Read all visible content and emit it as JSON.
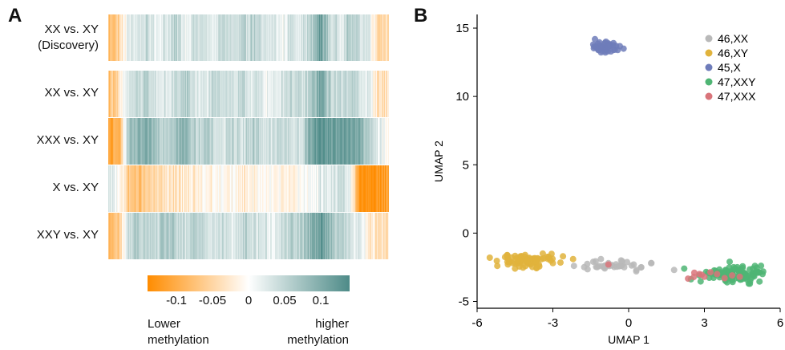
{
  "panels": {
    "a_label": "A",
    "b_label": "B"
  },
  "heatmap": {
    "rows": [
      {
        "label_line1": "XX vs. XY",
        "label_line2": "(Discovery)"
      },
      {
        "label_line1": "XX vs. XY",
        "label_line2": ""
      },
      {
        "label_line1": "XXX vs. XY",
        "label_line2": ""
      },
      {
        "label_line1": "X vs. XY",
        "label_line2": ""
      },
      {
        "label_line1": "XXY vs. XY",
        "label_line2": ""
      }
    ],
    "colorbar": {
      "ticks": [
        "-0.1",
        "-0.05",
        "0",
        "0.05",
        "0.1"
      ],
      "tick_values": [
        -0.1,
        -0.05,
        0,
        0.05,
        0.1
      ],
      "range": [
        -0.14,
        0.14
      ],
      "low_color": "#ff8c00",
      "mid_color": "#ffffff",
      "high_color": "#4e8b88",
      "low_note_line1": "Lower",
      "low_note_line2": "methylation",
      "high_note_line1": "higher",
      "high_note_line2": "methylation"
    }
  },
  "chart_data": [
    {
      "type": "heatmap",
      "rows": [
        "XX vs. XY (Discovery)",
        "XX vs. XY",
        "XXX vs. XY",
        "X vs. XY",
        "XXY vs. XY"
      ],
      "n_columns": 346,
      "values_sampled": [
        [
          -0.08,
          -0.06,
          0.02,
          0.03,
          0.04,
          0.02,
          0.03,
          0.05,
          0.02,
          0.04,
          0.03,
          0.02,
          0.05,
          0.03,
          0.04,
          0.06,
          0.02,
          0.03,
          0.01,
          0.04,
          0.03,
          0.05,
          0.12,
          0.04,
          0.03,
          0.06,
          0.04,
          0.03,
          -0.05,
          -0.03
        ],
        [
          -0.07,
          -0.05,
          0.03,
          0.04,
          0.05,
          0.03,
          0.02,
          0.04,
          0.06,
          0.03,
          0.02,
          0.04,
          0.05,
          0.03,
          0.04,
          0.03,
          0.02,
          0.01,
          0.04,
          0.05,
          0.03,
          0.06,
          0.11,
          0.05,
          0.04,
          0.06,
          0.03,
          0.02,
          -0.04,
          -0.03
        ],
        [
          -0.12,
          -0.1,
          0.06,
          0.08,
          0.09,
          0.07,
          0.06,
          0.08,
          0.09,
          0.05,
          0.06,
          0.04,
          0.03,
          0.05,
          0.04,
          0.06,
          0.04,
          0.03,
          0.05,
          0.04,
          0.03,
          0.11,
          0.13,
          0.12,
          0.11,
          0.12,
          0.1,
          0.05,
          0.02,
          -0.01
        ],
        [
          0.02,
          0.01,
          -0.06,
          -0.08,
          -0.06,
          -0.05,
          -0.03,
          -0.04,
          -0.02,
          -0.03,
          -0.01,
          -0.02,
          0.0,
          -0.01,
          -0.02,
          -0.01,
          -0.02,
          0.0,
          -0.01,
          -0.02,
          0.01,
          -0.01,
          0.03,
          0.02,
          0.04,
          0.02,
          -0.13,
          -0.14,
          -0.13,
          -0.1
        ],
        [
          -0.09,
          -0.07,
          0.04,
          0.06,
          0.05,
          0.04,
          0.07,
          0.05,
          0.03,
          0.06,
          0.05,
          0.03,
          0.04,
          0.02,
          0.05,
          0.04,
          0.03,
          0.02,
          0.04,
          0.06,
          0.05,
          0.1,
          0.12,
          0.08,
          0.06,
          0.03,
          0.02,
          -0.02,
          -0.04,
          -0.03
        ]
      ]
    },
    {
      "type": "scatter",
      "xlabel": "UMAP 1",
      "ylabel": "UMAP 2",
      "xlim": [
        -6,
        6
      ],
      "ylim": [
        -5.5,
        16
      ],
      "xticks": [
        -6,
        -3,
        0,
        3,
        6
      ],
      "xtick_labels": [
        "-6",
        "-3",
        "0",
        "3",
        "6"
      ],
      "yticks": [
        -5,
        0,
        5,
        10,
        15
      ],
      "ytick_labels": [
        "-5",
        "0",
        "5",
        "10",
        "15"
      ],
      "legend_position": "top-right",
      "series": [
        {
          "name": "46,XX",
          "color": "#b9b9b9",
          "center": [
            -0.6,
            -2.4
          ],
          "spread": [
            1.3,
            0.25
          ],
          "n": 40,
          "points": [
            [
              -1.4,
              -2.1
            ],
            [
              -1.2,
              -2.4
            ],
            [
              -0.8,
              -2.2
            ],
            [
              -0.3,
              -2.0
            ],
            [
              0.2,
              -2.3
            ],
            [
              0.5,
              -2.5
            ],
            [
              0.9,
              -2.2
            ],
            [
              -1.1,
              -1.9
            ],
            [
              0.3,
              -2.8
            ],
            [
              1.8,
              -2.7
            ]
          ]
        },
        {
          "name": "46,XY",
          "color": "#e1b33c",
          "center": [
            -4.0,
            -2.0
          ],
          "spread": [
            1.0,
            0.4
          ],
          "n": 85,
          "points": [
            [
              -5.5,
              -1.8
            ],
            [
              -5.2,
              -2.4
            ],
            [
              -4.8,
              -2.1
            ],
            [
              -4.5,
              -2.6
            ],
            [
              -4.1,
              -1.6
            ],
            [
              -3.8,
              -2.0
            ],
            [
              -3.4,
              -1.5
            ],
            [
              -3.0,
              -2.2
            ],
            [
              -2.6,
              -1.7
            ],
            [
              -2.2,
              -1.9
            ]
          ]
        },
        {
          "name": "45,X",
          "color": "#6e7cba",
          "center": [
            -0.9,
            13.6
          ],
          "spread": [
            0.6,
            0.35
          ],
          "n": 45,
          "points": [
            [
              -1.4,
              13.8
            ],
            [
              -1.2,
              13.4
            ],
            [
              -0.9,
              14.0
            ],
            [
              -0.7,
              13.3
            ],
            [
              -0.5,
              13.7
            ],
            [
              -0.2,
              13.5
            ],
            [
              -1.0,
              13.6
            ],
            [
              -0.6,
              13.9
            ]
          ]
        },
        {
          "name": "47,XXY",
          "color": "#4fb574",
          "center": [
            4.2,
            -3.0
          ],
          "spread": [
            1.0,
            0.5
          ],
          "n": 110,
          "points": [
            [
              2.2,
              -2.6
            ],
            [
              2.8,
              -3.1
            ],
            [
              3.4,
              -3.0
            ],
            [
              3.9,
              -3.6
            ],
            [
              4.3,
              -2.5
            ],
            [
              4.6,
              -3.2
            ],
            [
              5.0,
              -2.4
            ],
            [
              5.3,
              -3.0
            ],
            [
              4.8,
              -3.7
            ],
            [
              4.0,
              -2.1
            ]
          ]
        },
        {
          "name": "47,XXX",
          "color": "#d9747a",
          "center": [
            3.0,
            -3.1
          ],
          "spread": [
            1.2,
            0.2
          ],
          "n": 12,
          "points": [
            [
              -0.8,
              -2.3
            ],
            [
              2.6,
              -2.9
            ],
            [
              3.0,
              -3.2
            ],
            [
              3.5,
              -3.0
            ],
            [
              4.1,
              -3.1
            ],
            [
              4.4,
              -3.2
            ],
            [
              3.8,
              -3.3
            ],
            [
              2.8,
              -3.0
            ]
          ]
        }
      ]
    }
  ]
}
